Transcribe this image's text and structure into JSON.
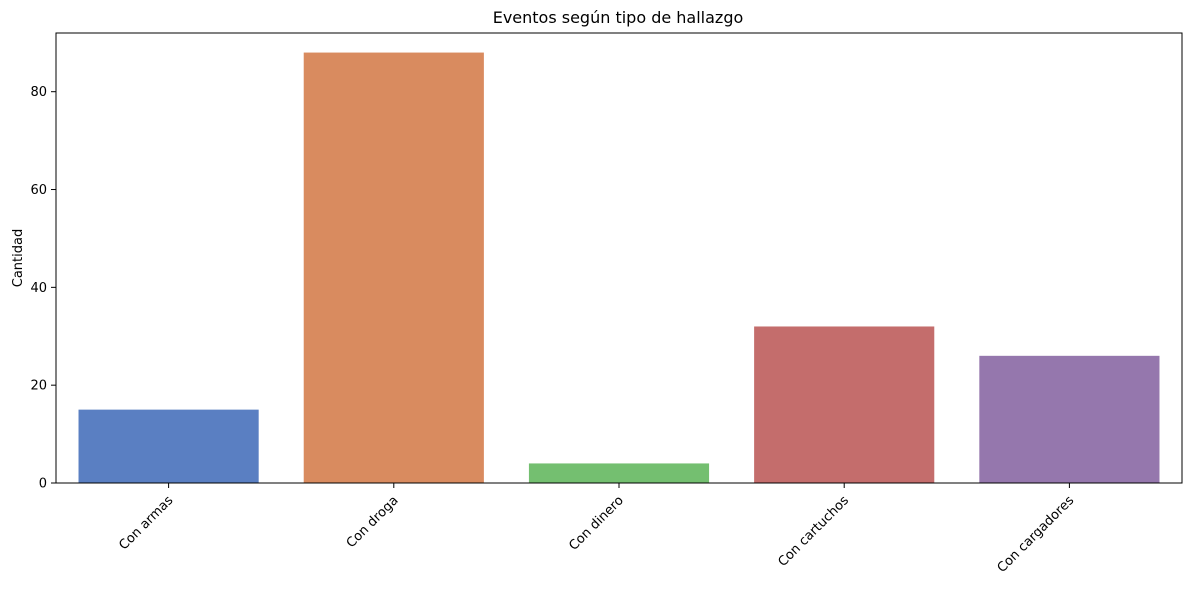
{
  "chart_data": {
    "type": "bar",
    "title": "Eventos según tipo de hallazgo",
    "xlabel": "",
    "ylabel": "Cantidad",
    "categories": [
      "Con armas",
      "Con droga",
      "Con dinero",
      "Con cartuchos",
      "Con cargadores"
    ],
    "values": [
      15,
      88,
      4,
      32,
      26
    ],
    "colors": [
      "#5a7fc2",
      "#d98b5f",
      "#74bf70",
      "#c46d6c",
      "#9577ad"
    ],
    "ylim": [
      0,
      92
    ],
    "yticks": [
      0,
      20,
      40,
      60,
      80
    ],
    "grid": false,
    "legend": "none"
  }
}
